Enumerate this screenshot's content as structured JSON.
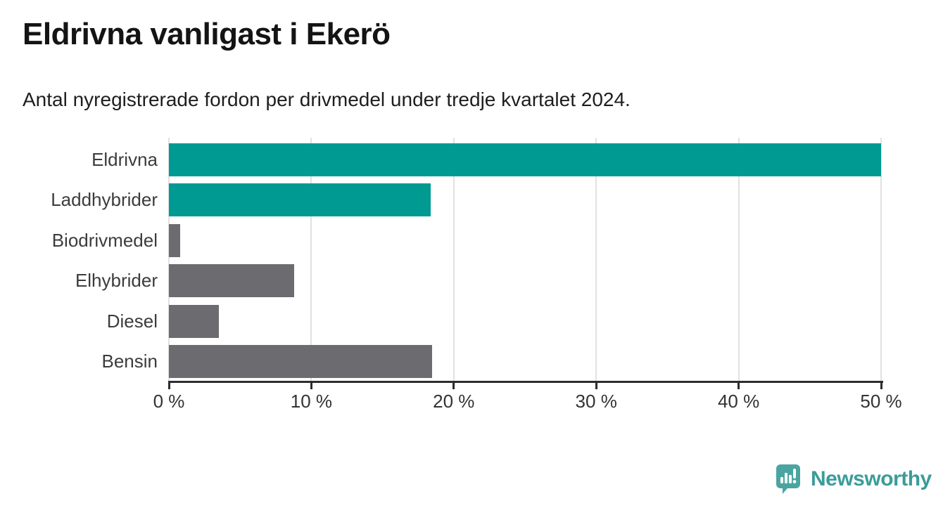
{
  "header": {
    "title": "Eldrivna vanligast i Ekerö",
    "subtitle": "Antal nyregistrerade fordon per drivmedel under tredje kvartalet 2024."
  },
  "chart_data": {
    "type": "bar",
    "orientation": "horizontal",
    "title": "Eldrivna vanligast i Ekerö",
    "subtitle": "Antal nyregistrerade fordon per drivmedel under tredje kvartalet 2024.",
    "categories": [
      "Eldrivna",
      "Laddhybrider",
      "Biodrivmedel",
      "Elhybrider",
      "Diesel",
      "Bensin"
    ],
    "values": [
      50.0,
      18.4,
      0.8,
      8.8,
      3.5,
      18.5
    ],
    "unit": "%",
    "xlabel": "",
    "ylabel": "",
    "xlim": [
      0,
      50
    ],
    "x_ticks": [
      0,
      10,
      20,
      30,
      40,
      50
    ],
    "x_tick_labels": [
      "0 %",
      "10 %",
      "20 %",
      "30 %",
      "40 %",
      "50 %"
    ],
    "bar_colors": [
      "#009a93",
      "#009a93",
      "#6c6c70",
      "#6c6c70",
      "#6c6c70",
      "#6c6c70"
    ],
    "grid": "vertical-gridlines-on",
    "legend": "none"
  },
  "colors": {
    "accent_teal": "#009a93",
    "neutral_gray": "#6c6c70",
    "gridline": "#e1e1e1",
    "axis": "#2d2d2d",
    "title_text": "#141414",
    "label_text": "#3c3c3c",
    "logo_mark_teal": "#4aa5a1",
    "logo_text_teal": "#3b9c99"
  },
  "footer": {
    "brand": "Newsworthy",
    "logo_icon": "newsworthy-speech-bubble-barchart-icon"
  }
}
